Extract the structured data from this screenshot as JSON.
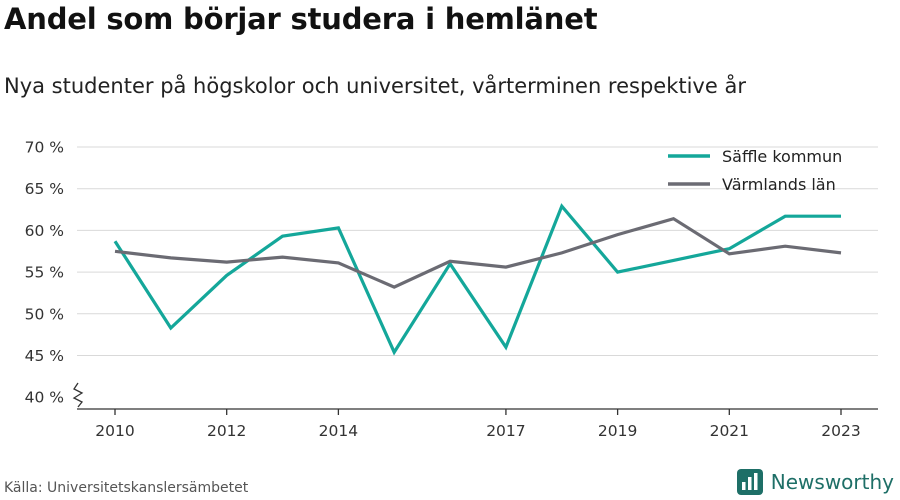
{
  "header": {
    "title": "Andel som börjar studera i hemlänet",
    "subtitle": "Nya studenter på högskolor och universitet, vårterminen respektive år"
  },
  "footer": {
    "source": "Källa: Universitetskanslersämbetet",
    "brand": "Newsworthy",
    "brand_icon": "bar-chart-logo-icon"
  },
  "colors": {
    "series_1": "#14a79a",
    "series_2": "#6b6b73",
    "grid": "#d9d9d9",
    "axis": "#333333",
    "brand": "#1e6f67"
  },
  "chart_data": {
    "type": "line",
    "title": "Andel som börjar studera i hemlänet",
    "subtitle": "Nya studenter på högskolor och universitet, vårterminen respektive år",
    "xlabel": "",
    "ylabel": "",
    "x": [
      2010,
      2011,
      2012,
      2013,
      2014,
      2015,
      2016,
      2017,
      2018,
      2019,
      2020,
      2021,
      2022,
      2023
    ],
    "xticks": [
      2010,
      2012,
      2014,
      2017,
      2019,
      2021,
      2023
    ],
    "xtick_labels": [
      "2010",
      "2012",
      "2014",
      "2017",
      "2019",
      "2021",
      "2023"
    ],
    "ylim": [
      39,
      71
    ],
    "yticks": [
      40,
      45,
      50,
      55,
      60,
      65,
      70
    ],
    "ytick_labels": [
      "40 %",
      "45 %",
      "50 %",
      "55 %",
      "60 %",
      "65 %",
      "70 %"
    ],
    "y_axis_break": true,
    "grid": "horizontal",
    "legend_position": "top-right",
    "series": [
      {
        "name": "Säffle kommun",
        "color": "#14a79a",
        "values": [
          58.7,
          48.3,
          54.6,
          59.3,
          60.3,
          45.4,
          56.0,
          46.0,
          62.9,
          55.0,
          56.4,
          57.8,
          61.7,
          61.7
        ]
      },
      {
        "name": "Värmlands län",
        "color": "#6b6b73",
        "values": [
          57.5,
          56.7,
          56.2,
          56.8,
          56.1,
          53.2,
          56.3,
          55.6,
          57.3,
          59.5,
          61.4,
          57.2,
          58.1,
          57.3
        ]
      }
    ]
  }
}
